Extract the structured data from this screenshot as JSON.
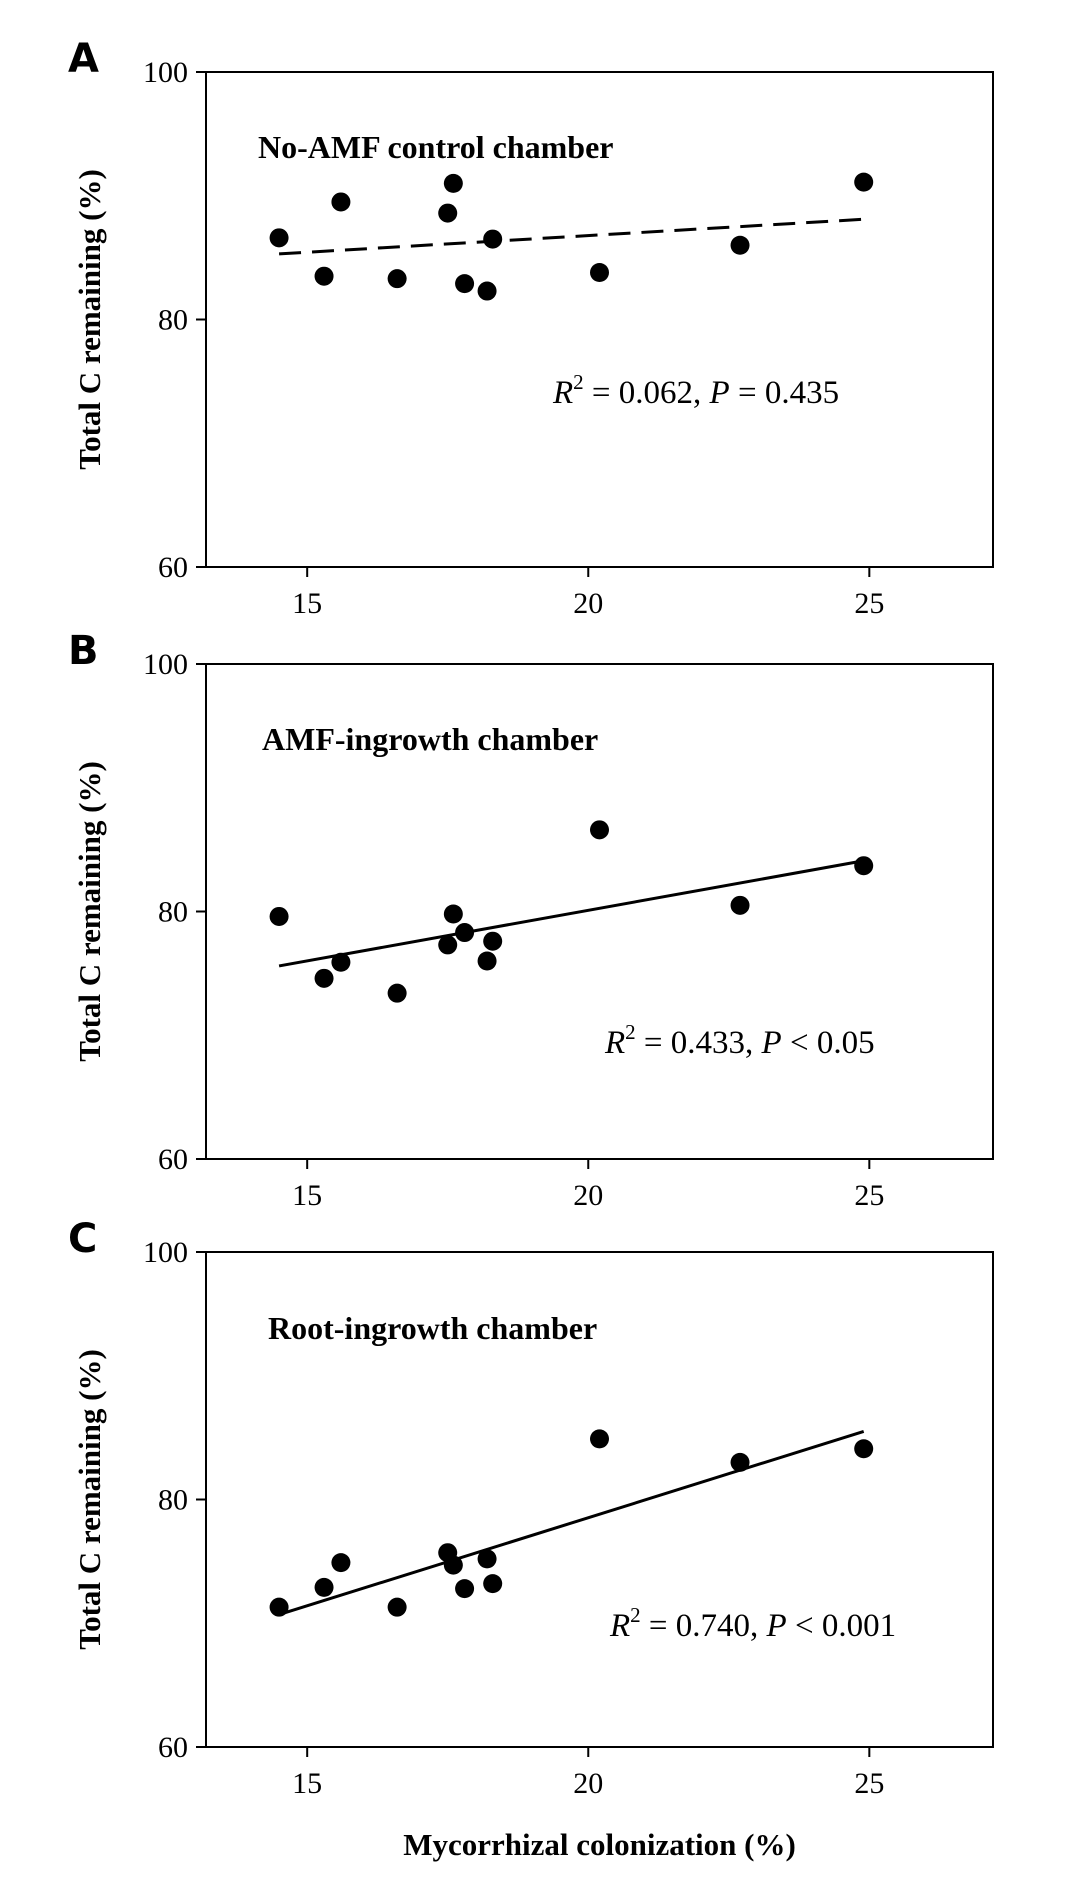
{
  "chart_data": [
    {
      "type": "scatter",
      "panel_label": "A",
      "title": "No-AMF control chamber",
      "xlabel": "",
      "ylabel": "Total C remaining (%)",
      "xlim": [
        13.2,
        27.2
      ],
      "ylim": [
        60,
        100
      ],
      "xticks": [
        15,
        20,
        25
      ],
      "yticks": [
        60,
        80,
        100
      ],
      "trendline": {
        "style": "dashed",
        "x": [
          14.5,
          24.9
        ],
        "y": [
          85.3,
          88.1
        ]
      },
      "stat": {
        "r2_prefix": "R",
        "r2_sup": "2",
        "r2_value": " = 0.062, ",
        "p_label": "P",
        "p_value": " = 0.435"
      },
      "points": [
        {
          "x": 14.5,
          "y": 86.6
        },
        {
          "x": 15.3,
          "y": 83.5
        },
        {
          "x": 15.6,
          "y": 89.5
        },
        {
          "x": 16.6,
          "y": 83.3
        },
        {
          "x": 17.5,
          "y": 88.6
        },
        {
          "x": 17.6,
          "y": 91.0
        },
        {
          "x": 17.8,
          "y": 82.9
        },
        {
          "x": 18.2,
          "y": 82.3
        },
        {
          "x": 18.3,
          "y": 86.5
        },
        {
          "x": 20.2,
          "y": 83.8
        },
        {
          "x": 22.7,
          "y": 86.0
        },
        {
          "x": 24.9,
          "y": 91.1
        }
      ]
    },
    {
      "type": "scatter",
      "panel_label": "B",
      "title": "AMF-ingrowth chamber",
      "xlabel": "",
      "ylabel": "Total C remaining (%)",
      "xlim": [
        13.2,
        27.2
      ],
      "ylim": [
        60,
        100
      ],
      "xticks": [
        15,
        20,
        25
      ],
      "yticks": [
        60,
        80,
        100
      ],
      "trendline": {
        "style": "solid",
        "x": [
          14.5,
          24.9
        ],
        "y": [
          75.6,
          84.1
        ]
      },
      "stat": {
        "r2_prefix": "R",
        "r2_sup": "2",
        "r2_value": " = 0.433, ",
        "p_label": "P",
        "p_value": " < 0.05"
      },
      "points": [
        {
          "x": 14.5,
          "y": 79.6
        },
        {
          "x": 15.3,
          "y": 74.6
        },
        {
          "x": 15.6,
          "y": 75.9
        },
        {
          "x": 16.6,
          "y": 73.4
        },
        {
          "x": 17.5,
          "y": 77.3
        },
        {
          "x": 17.6,
          "y": 79.8
        },
        {
          "x": 17.8,
          "y": 78.3
        },
        {
          "x": 18.2,
          "y": 76.0
        },
        {
          "x": 18.3,
          "y": 77.6
        },
        {
          "x": 20.2,
          "y": 86.6
        },
        {
          "x": 22.7,
          "y": 80.5
        },
        {
          "x": 24.9,
          "y": 83.7
        }
      ]
    },
    {
      "type": "scatter",
      "panel_label": "C",
      "title": "Root-ingrowth chamber",
      "xlabel": "Mycorrhizal colonization (%)",
      "ylabel": "Total C remaining (%)",
      "xlim": [
        13.2,
        27.2
      ],
      "ylim": [
        60,
        100
      ],
      "xticks": [
        15,
        20,
        25
      ],
      "yticks": [
        60,
        80,
        100
      ],
      "trendline": {
        "style": "solid",
        "x": [
          14.5,
          24.9
        ],
        "y": [
          70.7,
          85.5
        ]
      },
      "stat": {
        "r2_prefix": "R",
        "r2_sup": "2",
        "r2_value": " = 0.740, ",
        "p_label": "P",
        "p_value": " < 0.001"
      },
      "points": [
        {
          "x": 14.5,
          "y": 71.3
        },
        {
          "x": 15.3,
          "y": 72.9
        },
        {
          "x": 15.6,
          "y": 74.9
        },
        {
          "x": 16.6,
          "y": 71.3
        },
        {
          "x": 17.5,
          "y": 75.7
        },
        {
          "x": 17.6,
          "y": 74.7
        },
        {
          "x": 17.8,
          "y": 72.8
        },
        {
          "x": 18.2,
          "y": 75.2
        },
        {
          "x": 18.3,
          "y": 73.2
        },
        {
          "x": 20.2,
          "y": 84.9
        },
        {
          "x": 22.7,
          "y": 83.0
        },
        {
          "x": 24.9,
          "y": 84.1
        }
      ]
    }
  ]
}
